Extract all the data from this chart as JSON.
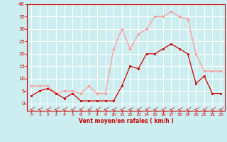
{
  "x": [
    0,
    1,
    2,
    3,
    4,
    5,
    6,
    7,
    8,
    9,
    10,
    11,
    12,
    13,
    14,
    15,
    16,
    17,
    18,
    19,
    20,
    21,
    22,
    23
  ],
  "wind_avg": [
    3,
    5,
    6,
    4,
    2,
    4,
    1,
    1,
    1,
    1,
    1,
    7,
    15,
    14,
    20,
    20,
    22,
    24,
    22,
    20,
    8,
    11,
    4,
    4
  ],
  "wind_gust": [
    7,
    7,
    7,
    4,
    5,
    5,
    4,
    7,
    4,
    4,
    22,
    30,
    22,
    28,
    30,
    35,
    35,
    37,
    35,
    34,
    20,
    13,
    13,
    13
  ],
  "bg_color": "#cceef0",
  "grid_color": "#ffffff",
  "avg_color": "#cc0000",
  "gust_color": "#ff9999",
  "xlabel": "Vent moyen/en rafales ( km/h )",
  "xlabel_color": "#cc0000",
  "tick_color": "#cc0000",
  "spine_color": "#cc0000",
  "ylim": [
    0,
    40
  ],
  "xlim": [
    -0.5,
    23.5
  ],
  "yticks": [
    0,
    5,
    10,
    15,
    20,
    25,
    30,
    35,
    40
  ],
  "xticks": [
    0,
    1,
    2,
    3,
    4,
    5,
    6,
    7,
    8,
    9,
    10,
    11,
    12,
    13,
    14,
    15,
    16,
    17,
    18,
    19,
    20,
    21,
    22,
    23
  ]
}
